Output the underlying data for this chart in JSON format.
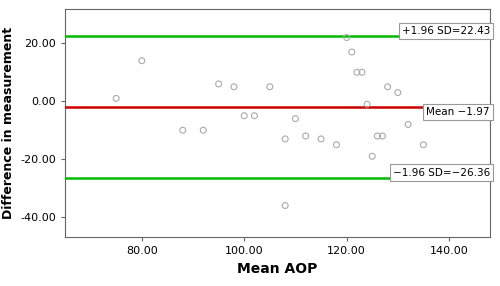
{
  "scatter_x": [
    75,
    80,
    88,
    92,
    95,
    98,
    100,
    102,
    105,
    108,
    110,
    112,
    115,
    118,
    120,
    121,
    122,
    123,
    124,
    125,
    126,
    127,
    128,
    130,
    132,
    135,
    108
  ],
  "scatter_y": [
    1,
    14,
    -10,
    -10,
    6,
    5,
    -5,
    -5,
    5,
    -13,
    -6,
    -12,
    -13,
    -15,
    22,
    17,
    10,
    10,
    -1,
    -19,
    -12,
    -12,
    5,
    3,
    -8,
    -15,
    -36
  ],
  "mean_line": -1.97,
  "upper_limit": 22.43,
  "lower_limit": -26.36,
  "xlabel": "Mean AOP",
  "ylabel": "Difference in measurement",
  "xlim": [
    65,
    148
  ],
  "ylim": [
    -47,
    32
  ],
  "xticks": [
    80.0,
    100.0,
    120.0,
    140.0
  ],
  "yticks": [
    -40.0,
    -20.0,
    0.0,
    20.0
  ],
  "upper_label": "+1.96 SD=22.43",
  "mean_label": "Mean −1.97",
  "lower_label": "−1.96 SD=−26.36",
  "line_color_green": "#00bb00",
  "line_color_red": "#cc0000",
  "scatter_facecolor": "none",
  "scatter_edgecolor": "#aaaaaa",
  "background_color": "#ffffff",
  "fig_width": 5.0,
  "fig_height": 2.86,
  "dpi": 100
}
